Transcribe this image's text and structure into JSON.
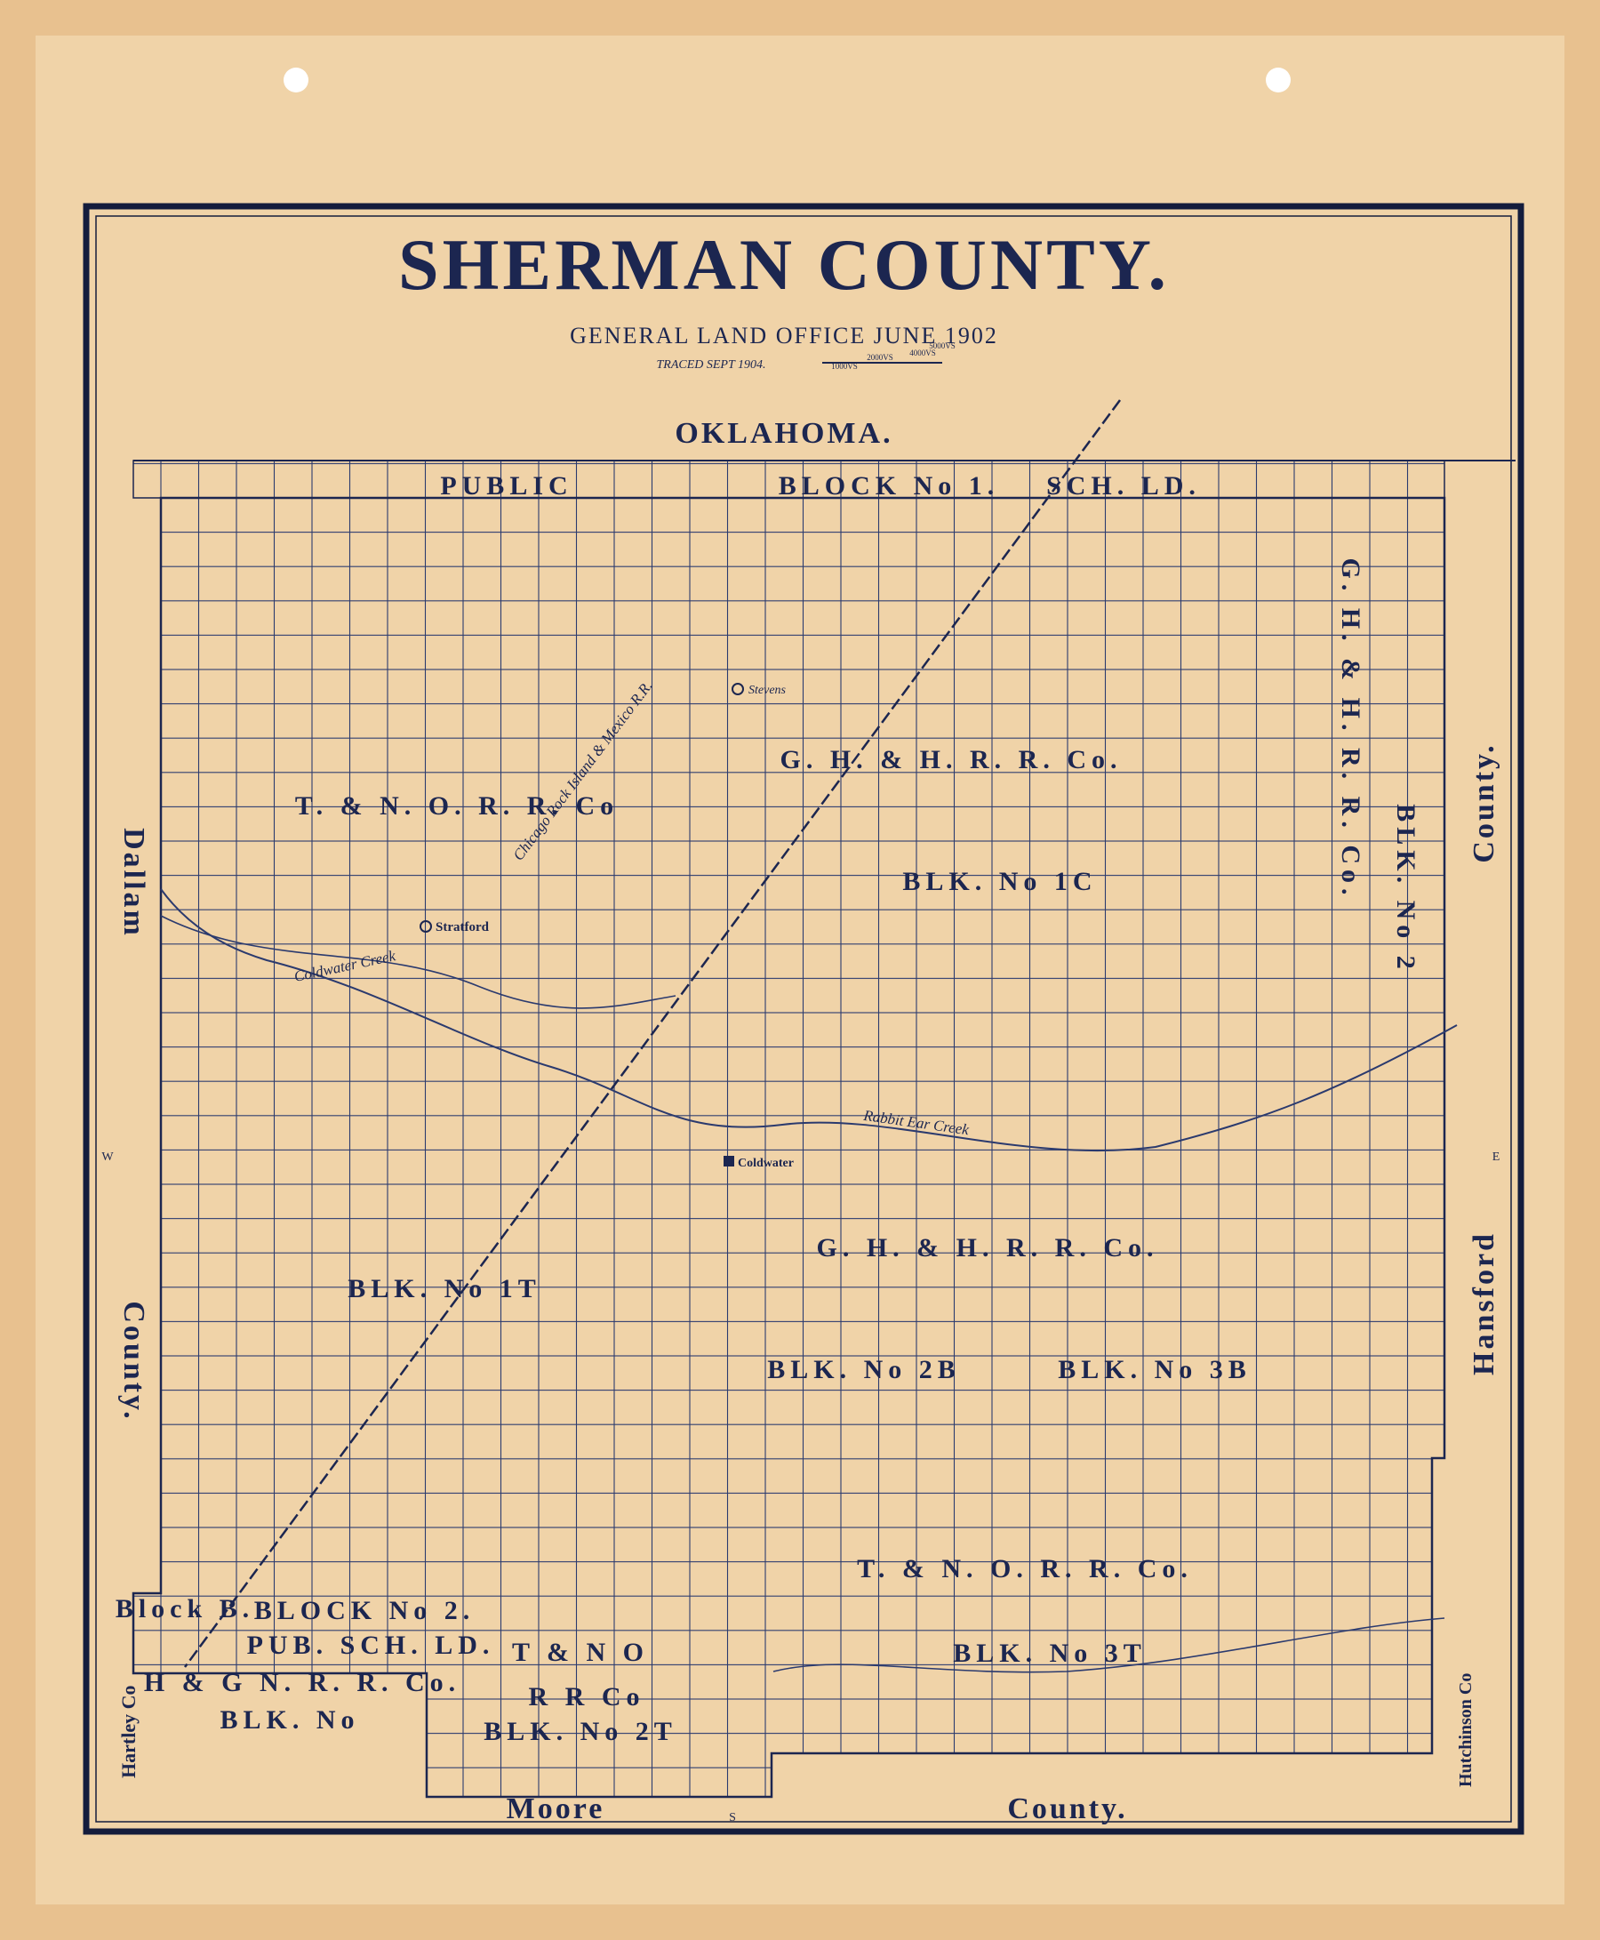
{
  "title": "SHERMAN COUNTY.",
  "subtitle": "GENERAL LAND OFFICE JUNE 1902",
  "traced": "TRACED SEPT 1904.",
  "scale": [
    "1000VS",
    "2000VS",
    "4000VS",
    "5000VS"
  ],
  "borders": {
    "north": "OKLAHOMA.",
    "west_top": "Dallam",
    "west_bottom": "County.",
    "east_top": "County.",
    "east_bottom": "Hansford",
    "south_left": "Moore",
    "south_right": "County.",
    "southwest": "Hartley Co",
    "southeast": "Hutchinson Co"
  },
  "compass": {
    "west": "W",
    "east": "E",
    "south": "S"
  },
  "blocks": [
    "PUBLIC",
    "BLOCK No 1.",
    "SCH. LD.",
    "T. & N. O. R. R. Co",
    "G. H. & H. R. R. Co.",
    "BLK. No 1C",
    "BLK. No 1T",
    "G. H. & H. R. R. Co.",
    "BLK. No 2B",
    "BLK. No 3B",
    "T. & N. O. R. R. Co.",
    "BLK. No 3T",
    "BLOCK No 2.",
    "PUB. SCH. LD.",
    "T & N O",
    "R R Co",
    "BLK. No 2T",
    "H & G N. R. R. Co.",
    "BLK. No",
    "Block B.",
    "G. H. & H. R. R. Co.",
    "BLK. No 2"
  ],
  "towns": [
    "Stratford",
    "Coldwater",
    "Stevens"
  ],
  "features": [
    "Rabbit Ear Creek",
    "Coldwater Creek",
    "Chicago Rock Island & Mexico R.R."
  ]
}
